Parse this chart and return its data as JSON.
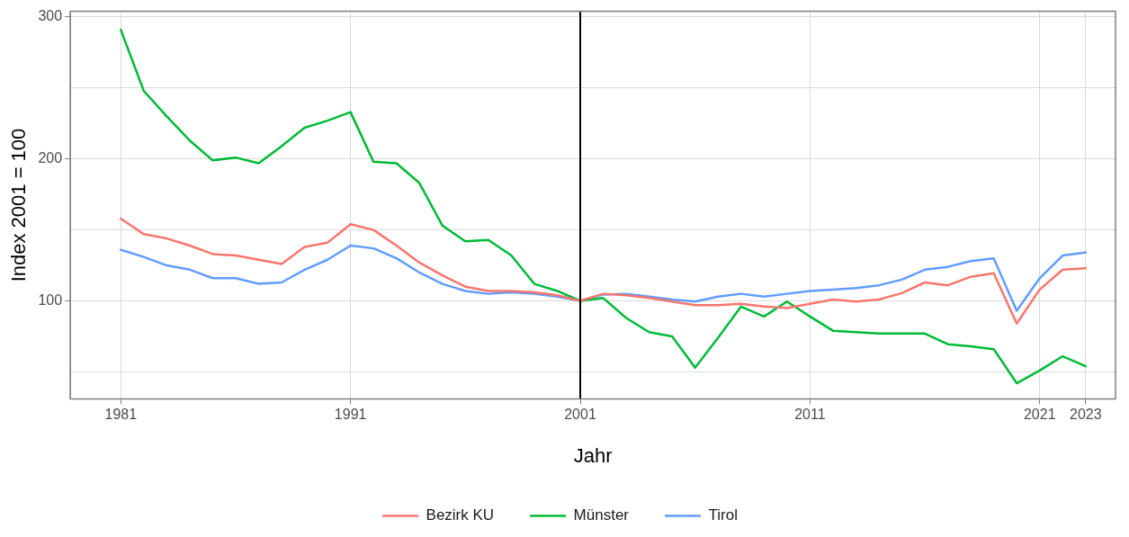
{
  "chart_data": {
    "type": "line",
    "xlabel": "Jahr",
    "ylabel": "Index 2001 = 100",
    "x": [
      1981,
      1982,
      1983,
      1984,
      1985,
      1986,
      1987,
      1988,
      1989,
      1990,
      1991,
      1992,
      1993,
      1994,
      1995,
      1996,
      1997,
      1998,
      1999,
      2000,
      2001,
      2002,
      2003,
      2004,
      2005,
      2006,
      2007,
      2008,
      2009,
      2010,
      2011,
      2012,
      2013,
      2014,
      2015,
      2016,
      2017,
      2018,
      2019,
      2020,
      2021,
      2022,
      2023
    ],
    "series": [
      {
        "name": "Bezirk KU",
        "color": "#f8766d",
        "values": [
          158,
          147,
          144,
          139,
          133,
          132,
          129,
          126,
          138,
          141,
          154,
          150,
          139,
          127,
          118,
          110,
          107,
          107,
          106,
          104,
          100,
          105,
          104,
          102,
          99.5,
          97,
          97,
          98,
          96,
          95,
          98,
          101,
          99.5,
          101,
          105.5,
          113,
          111,
          117,
          119.5,
          84,
          108,
          122,
          123
        ]
      },
      {
        "name": "Münster",
        "color": "#00ba38",
        "values": [
          291,
          248,
          230,
          213,
          199,
          201,
          197,
          209,
          222,
          227,
          233,
          198,
          197,
          183,
          153,
          142,
          143,
          132,
          112,
          107,
          100,
          102,
          88,
          78,
          75,
          53,
          74,
          96,
          89,
          99.5,
          89,
          79,
          78,
          77,
          77,
          77,
          69.5,
          68,
          66,
          42,
          51,
          61,
          54
        ]
      },
      {
        "name": "Tirol",
        "color": "#619cff",
        "values": [
          136,
          131,
          125,
          122,
          116,
          116,
          112,
          113,
          122,
          129,
          139,
          137,
          130,
          120,
          112,
          107,
          105,
          106,
          105,
          103,
          100,
          104.5,
          105,
          103,
          101,
          99.5,
          103,
          105,
          103,
          105,
          107,
          108,
          109,
          111,
          115,
          122,
          124,
          128,
          130,
          93,
          116,
          132,
          134
        ]
      }
    ],
    "xlim": [
      1978.8,
      2024.3
    ],
    "xticks": [
      1981,
      1991,
      2001,
      2011,
      2021,
      2023
    ],
    "ylim": [
      31,
      304
    ],
    "yticks": [
      {
        "value": 50,
        "label": null
      },
      100,
      {
        "value": 150,
        "label": null
      },
      200,
      {
        "value": 250,
        "label": null
      },
      300
    ],
    "ref_lines": [
      {
        "axis": "x",
        "value": 2001,
        "color": "#000000"
      }
    ],
    "grid": true,
    "legend": "bottom",
    "marker": "none",
    "line_style": "solid"
  }
}
